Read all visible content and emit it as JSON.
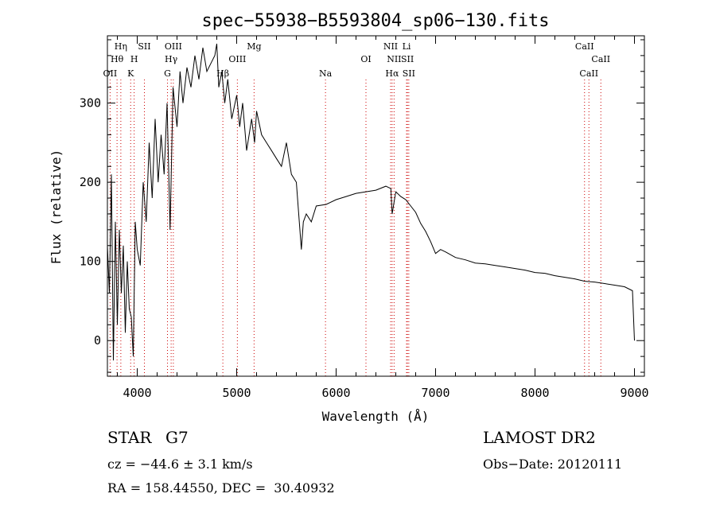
{
  "chart_data": {
    "type": "line",
    "title": "spec−55938−B5593804_sp06−130.fits",
    "xlabel": "Wavelength (Å)",
    "ylabel": "Flux (relative)",
    "xlim": [
      3700,
      9100
    ],
    "ylim": [
      -45,
      385
    ],
    "xticks": [
      4000,
      5000,
      6000,
      7000,
      8000,
      9000
    ],
    "yticks": [
      0,
      100,
      200,
      300
    ],
    "grid": false,
    "line_color": "#000000",
    "marker_color": "#cc0000",
    "series": [
      {
        "x": [
          3700,
          3720,
          3740,
          3760,
          3780,
          3800,
          3820,
          3840,
          3860,
          3880,
          3900,
          3920,
          3940,
          3960,
          3980,
          4000,
          4030,
          4060,
          4090,
          4120,
          4150,
          4180,
          4210,
          4240,
          4270,
          4300,
          4330,
          4360,
          4400,
          4430,
          4460,
          4500,
          4540,
          4580,
          4620,
          4660,
          4700,
          4740,
          4780,
          4800,
          4820,
          4850,
          4880,
          4910,
          4950,
          5000,
          5030,
          5060,
          5100,
          5150,
          5180,
          5200,
          5250,
          5300,
          5350,
          5400,
          5450,
          5500,
          5550,
          5600,
          5650,
          5670,
          5700,
          5750,
          5800,
          5900,
          6000,
          6100,
          6200,
          6300,
          6400,
          6500,
          6550,
          6563,
          6600,
          6650,
          6700,
          6750,
          6800,
          6850,
          6900,
          6950,
          7000,
          7050,
          7100,
          7200,
          7300,
          7400,
          7500,
          7600,
          7700,
          7800,
          7900,
          8000,
          8100,
          8200,
          8300,
          8400,
          8500,
          8600,
          8700,
          8800,
          8900,
          8980,
          9000
        ],
        "y": [
          120,
          60,
          210,
          -25,
          150,
          20,
          140,
          60,
          120,
          10,
          100,
          40,
          30,
          -20,
          150,
          115,
          95,
          200,
          150,
          250,
          180,
          280,
          200,
          260,
          210,
          300,
          140,
          320,
          270,
          340,
          300,
          345,
          320,
          360,
          330,
          370,
          340,
          350,
          360,
          375,
          320,
          340,
          300,
          330,
          280,
          310,
          270,
          300,
          240,
          280,
          250,
          290,
          260,
          250,
          240,
          230,
          220,
          250,
          210,
          200,
          115,
          150,
          160,
          150,
          170,
          172,
          178,
          182,
          186,
          188,
          190,
          195,
          192,
          160,
          188,
          182,
          178,
          170,
          162,
          148,
          138,
          125,
          110,
          115,
          112,
          105,
          102,
          98,
          97,
          95,
          93,
          91,
          89,
          86,
          85,
          82,
          80,
          78,
          75,
          74,
          72,
          70,
          68,
          63,
          0
        ]
      }
    ],
    "lines": [
      {
        "label": "OII",
        "x": 3727,
        "row": 3
      },
      {
        "label": "Hη",
        "x": 3835,
        "row": 1
      },
      {
        "label": "Hθ",
        "x": 3797,
        "row": 2
      },
      {
        "label": "K",
        "x": 3934,
        "row": 3
      },
      {
        "label": "H",
        "x": 3969,
        "row": 2
      },
      {
        "label": "SII",
        "x": 4072,
        "row": 1
      },
      {
        "label": "G",
        "x": 4304,
        "row": 3
      },
      {
        "label": "Hγ",
        "x": 4341,
        "row": 2
      },
      {
        "label": "OIII",
        "x": 4363,
        "row": 1
      },
      {
        "label": "Hβ",
        "x": 4861,
        "row": 3
      },
      {
        "label": "OIII",
        "x": 5007,
        "row": 2
      },
      {
        "label": "Mg",
        "x": 5175,
        "row": 1
      },
      {
        "label": "Na",
        "x": 5893,
        "row": 3
      },
      {
        "label": "OI",
        "x": 6300,
        "row": 2
      },
      {
        "label": "NII",
        "x": 6548,
        "row": 1
      },
      {
        "label": "NII",
        "x": 6583,
        "row": 2
      },
      {
        "label": "Hα",
        "x": 6563,
        "row": 3
      },
      {
        "label": "Li",
        "x": 6708,
        "row": 1
      },
      {
        "label": "SII",
        "x": 6717,
        "row": 2
      },
      {
        "label": "SII",
        "x": 6731,
        "row": 3
      },
      {
        "label": "CaII",
        "x": 8498,
        "row": 1
      },
      {
        "label": "CaII",
        "x": 8542,
        "row": 3
      },
      {
        "label": "CaII",
        "x": 8662,
        "row": 2
      }
    ]
  },
  "info": {
    "obj_class": "STAR",
    "subclass": "G7",
    "survey": "LAMOST DR2",
    "cz": "cz = −44.6 ± 3.1 km/s",
    "obs_date": "Obs−Date: 20120111",
    "radec": "RA = 158.44550, DEC =  30.40932"
  }
}
